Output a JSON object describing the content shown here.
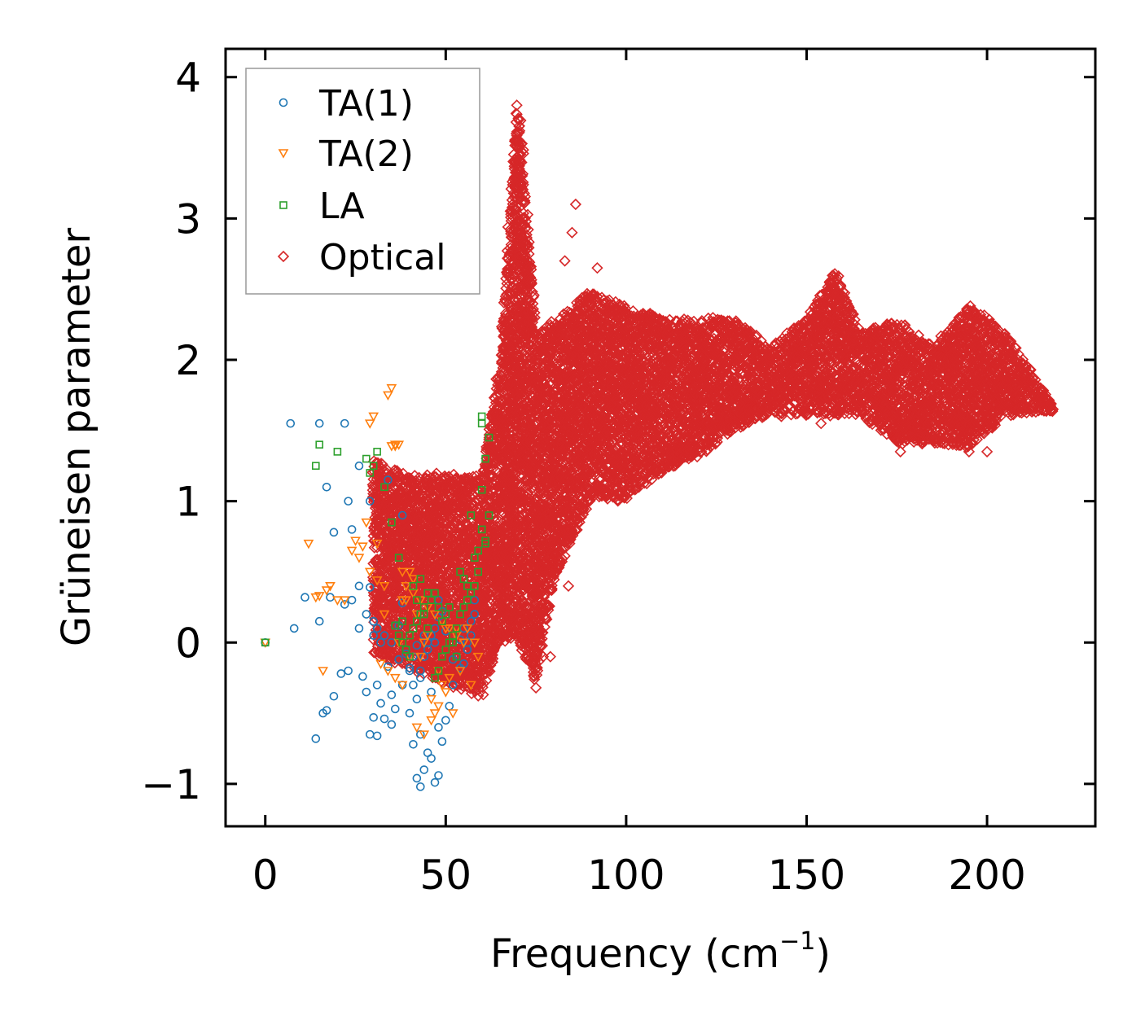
{
  "chart_data": {
    "type": "scatter",
    "title": "",
    "xlabel": "Frequency (cm",
    "xlabel_sup": "−1",
    "xlabel_close": ")",
    "ylabel": "Grüneisen parameter",
    "xlim": [
      -11,
      230
    ],
    "ylim": [
      -1.3,
      4.2
    ],
    "xticks": [
      0,
      50,
      100,
      150,
      200
    ],
    "xtick_labels": [
      "0",
      "50",
      "100",
      "150",
      "200"
    ],
    "yticks": [
      -1,
      0,
      1,
      2,
      3,
      4
    ],
    "ytick_labels": [
      "−1",
      "0",
      "1",
      "2",
      "3",
      "4"
    ],
    "legend_position": "top-left",
    "grid": false,
    "series": [
      {
        "name": "TA(1)",
        "marker": "circle",
        "color": "#1f77b4",
        "x": [
          0,
          7,
          15,
          22,
          11,
          8,
          15,
          18,
          16,
          17,
          19,
          21,
          23,
          24,
          26,
          27,
          28,
          29,
          30,
          31,
          32,
          33,
          34,
          35,
          36,
          37,
          38,
          39,
          40,
          41,
          42,
          43,
          44,
          45,
          46,
          47,
          48,
          49,
          50,
          51,
          52,
          53,
          54,
          55,
          56,
          57,
          58,
          40,
          41,
          42,
          43,
          44,
          45,
          46,
          47,
          48,
          49,
          30,
          31,
          32,
          35,
          37,
          39,
          41,
          43,
          45,
          47,
          50,
          52,
          54,
          56,
          58,
          24,
          26,
          28,
          30,
          33,
          36,
          38,
          42,
          44,
          48,
          55,
          57,
          23,
          26,
          29,
          22,
          19,
          17,
          14,
          31,
          35,
          40,
          43,
          46,
          48,
          29,
          34,
          38
        ],
        "y": [
          0,
          1.55,
          1.55,
          1.55,
          0.32,
          0.1,
          0.15,
          0.32,
          -0.5,
          -0.48,
          -0.38,
          -0.22,
          -0.2,
          0.3,
          0.1,
          -0.24,
          -0.35,
          -0.65,
          -0.53,
          -0.3,
          -0.43,
          -0.54,
          -0.17,
          -0.37,
          -0.47,
          -0.12,
          -0.3,
          -0.05,
          -0.5,
          -0.72,
          -0.96,
          -1.02,
          -0.9,
          -0.78,
          -0.82,
          -0.99,
          -0.94,
          -0.7,
          -0.55,
          -0.45,
          -0.3,
          -0.1,
          0.02,
          -0.15,
          -0.05,
          0.15,
          0.2,
          -0.18,
          -0.3,
          -0.4,
          -0.25,
          -0.1,
          0.0,
          0.05,
          0.1,
          0.18,
          0.22,
          0.05,
          0.1,
          0.0,
          0.0,
          0.12,
          -0.08,
          -0.1,
          -0.2,
          -0.05,
          0.0,
          0.08,
          -0.12,
          -0.18,
          0.0,
          0.3,
          0.8,
          0.4,
          0.2,
          0.15,
          0.05,
          0.12,
          0.28,
          -0.02,
          0.05,
          0.3,
          0.1,
          0.05,
          1.0,
          1.25,
          0.39,
          0.27,
          0.78,
          1.1,
          -0.68,
          -0.66,
          -0.58,
          -0.2,
          -0.65,
          -0.35,
          -0.6,
          1.0,
          1.15,
          0.9
        ],
        "visible_count": 100
      },
      {
        "name": "TA(2)",
        "marker": "triangle-down",
        "color": "#ff7f0e",
        "x": [
          0,
          12,
          14,
          16,
          18,
          20,
          22,
          24,
          26,
          28,
          29,
          30,
          31,
          33,
          34,
          35,
          36,
          37,
          38,
          39,
          40,
          41,
          42,
          43,
          44,
          45,
          46,
          47,
          48,
          49,
          50,
          51,
          52,
          53,
          54,
          55,
          56,
          57,
          58,
          59,
          35,
          36,
          37,
          38,
          39,
          15,
          17,
          25,
          27,
          29,
          31,
          33,
          41,
          43,
          45,
          47,
          49,
          51,
          53,
          55,
          42,
          44,
          46,
          48,
          50,
          32,
          34,
          36,
          38,
          40
        ],
        "y": [
          0,
          0.7,
          0.32,
          -0.2,
          0.4,
          0.3,
          0.3,
          0.65,
          0.6,
          0.85,
          1.55,
          1.6,
          0.7,
          0.2,
          1.75,
          1.8,
          1.4,
          0.0,
          0.3,
          0.4,
          0.5,
          0.45,
          0.2,
          -0.1,
          0.0,
          0.05,
          -0.4,
          -0.5,
          -0.2,
          -0.3,
          0.1,
          -0.25,
          -0.5,
          0.1,
          -0.2,
          0.0,
          0.1,
          -0.3,
          0.0,
          -0.1,
          1.39,
          1.39,
          1.4,
          0.5,
          0.3,
          0.33,
          0.37,
          0.72,
          0.68,
          0.5,
          0.44,
          0.4,
          0.35,
          0.3,
          0.25,
          0.2,
          0.15,
          0.1,
          0.05,
          0.0,
          -0.6,
          -0.65,
          -0.55,
          -0.45,
          -0.35,
          -0.15,
          -0.2,
          -0.25,
          -0.3,
          -0.1
        ],
        "visible_count": 70
      },
      {
        "name": "LA",
        "marker": "square",
        "color": "#2ca02c",
        "x": [
          0,
          15,
          14,
          20,
          28,
          29,
          30,
          31,
          33,
          35,
          37,
          38,
          39,
          40,
          41,
          42,
          43,
          44,
          45,
          46,
          47,
          48,
          49,
          50,
          51,
          52,
          53,
          54,
          55,
          56,
          57,
          58,
          59,
          60,
          61,
          62,
          60,
          61,
          62,
          60,
          59,
          58,
          57,
          56,
          55,
          54,
          53,
          52,
          51,
          50,
          49,
          48,
          47,
          46,
          45,
          44,
          43,
          42,
          41,
          40,
          39,
          38,
          37,
          36,
          60,
          61
        ],
        "y": [
          0,
          1.4,
          1.25,
          1.35,
          1.3,
          1.2,
          1.25,
          1.35,
          1.1,
          0.85,
          0.6,
          0.15,
          -0.05,
          -0.1,
          0.4,
          0.3,
          0.45,
          0.2,
          0.1,
          0.3,
          0.35,
          0.25,
          0.15,
          0.2,
          0.25,
          0.0,
          -0.1,
          0.5,
          0.45,
          0.4,
          0.9,
          0.6,
          0.65,
          0.8,
          0.7,
          0.9,
          1.08,
          1.3,
          1.45,
          1.55,
          0.5,
          0.4,
          0.35,
          0.3,
          0.25,
          0.2,
          0.1,
          0.05,
          0.0,
          -0.05,
          -0.1,
          -0.2,
          -0.25,
          0.3,
          0.35,
          0.25,
          0.2,
          0.15,
          0.1,
          0.05,
          -0.05,
          0.0,
          0.05,
          0.12,
          1.6,
          0.72
        ],
        "visible_count": 66
      },
      {
        "name": "Optical",
        "marker": "diamond",
        "color": "#d62728",
        "description": "Dense cloud of optical-mode points spanning roughly 28 to 218 cm⁻¹; sharp spike up to about 3.95 near 70 cm⁻¹; broad band around 1.4–2.4 from 80 to 218 cm⁻¹ with peaks near 2.6 at about 157 cm⁻¹.",
        "envelope": [
          {
            "x": 30,
            "ymin": -0.1,
            "ymax": 1.3
          },
          {
            "x": 40,
            "ymin": -0.2,
            "ymax": 1.2
          },
          {
            "x": 50,
            "ymin": -0.3,
            "ymax": 1.2
          },
          {
            "x": 60,
            "ymin": -0.4,
            "ymax": 1.2
          },
          {
            "x": 65,
            "ymin": 0.0,
            "ymax": 2.0
          },
          {
            "x": 70,
            "ymin": 0.0,
            "ymax": 3.95
          },
          {
            "x": 75,
            "ymin": -0.3,
            "ymax": 2.2
          },
          {
            "x": 80,
            "ymin": 0.4,
            "ymax": 2.3
          },
          {
            "x": 90,
            "ymin": 1.0,
            "ymax": 2.5
          },
          {
            "x": 100,
            "ymin": 1.0,
            "ymax": 2.4
          },
          {
            "x": 110,
            "ymin": 1.2,
            "ymax": 2.3
          },
          {
            "x": 120,
            "ymin": 1.3,
            "ymax": 2.3
          },
          {
            "x": 130,
            "ymin": 1.5,
            "ymax": 2.3
          },
          {
            "x": 140,
            "ymin": 1.6,
            "ymax": 2.1
          },
          {
            "x": 150,
            "ymin": 1.6,
            "ymax": 2.3
          },
          {
            "x": 158,
            "ymin": 1.6,
            "ymax": 2.65
          },
          {
            "x": 165,
            "ymin": 1.6,
            "ymax": 2.2
          },
          {
            "x": 175,
            "ymin": 1.4,
            "ymax": 2.3
          },
          {
            "x": 185,
            "ymin": 1.4,
            "ymax": 2.1
          },
          {
            "x": 195,
            "ymin": 1.35,
            "ymax": 2.4
          },
          {
            "x": 205,
            "ymin": 1.6,
            "ymax": 2.2
          },
          {
            "x": 218,
            "ymin": 1.63,
            "ymax": 1.7
          }
        ],
        "outliers": [
          {
            "x": 86,
            "y": 3.1
          },
          {
            "x": 85,
            "y": 2.9
          },
          {
            "x": 92,
            "y": 2.65
          },
          {
            "x": 83,
            "y": 2.7
          },
          {
            "x": 77,
            "y": -0.1
          },
          {
            "x": 75,
            "y": -0.32
          },
          {
            "x": 79,
            "y": -0.1
          },
          {
            "x": 84,
            "y": 0.4
          },
          {
            "x": 154,
            "y": 1.55
          },
          {
            "x": 176,
            "y": 1.35
          },
          {
            "x": 195,
            "y": 1.35
          },
          {
            "x": 200,
            "y": 1.35
          },
          {
            "x": 143,
            "y": 1.6
          }
        ]
      }
    ]
  }
}
